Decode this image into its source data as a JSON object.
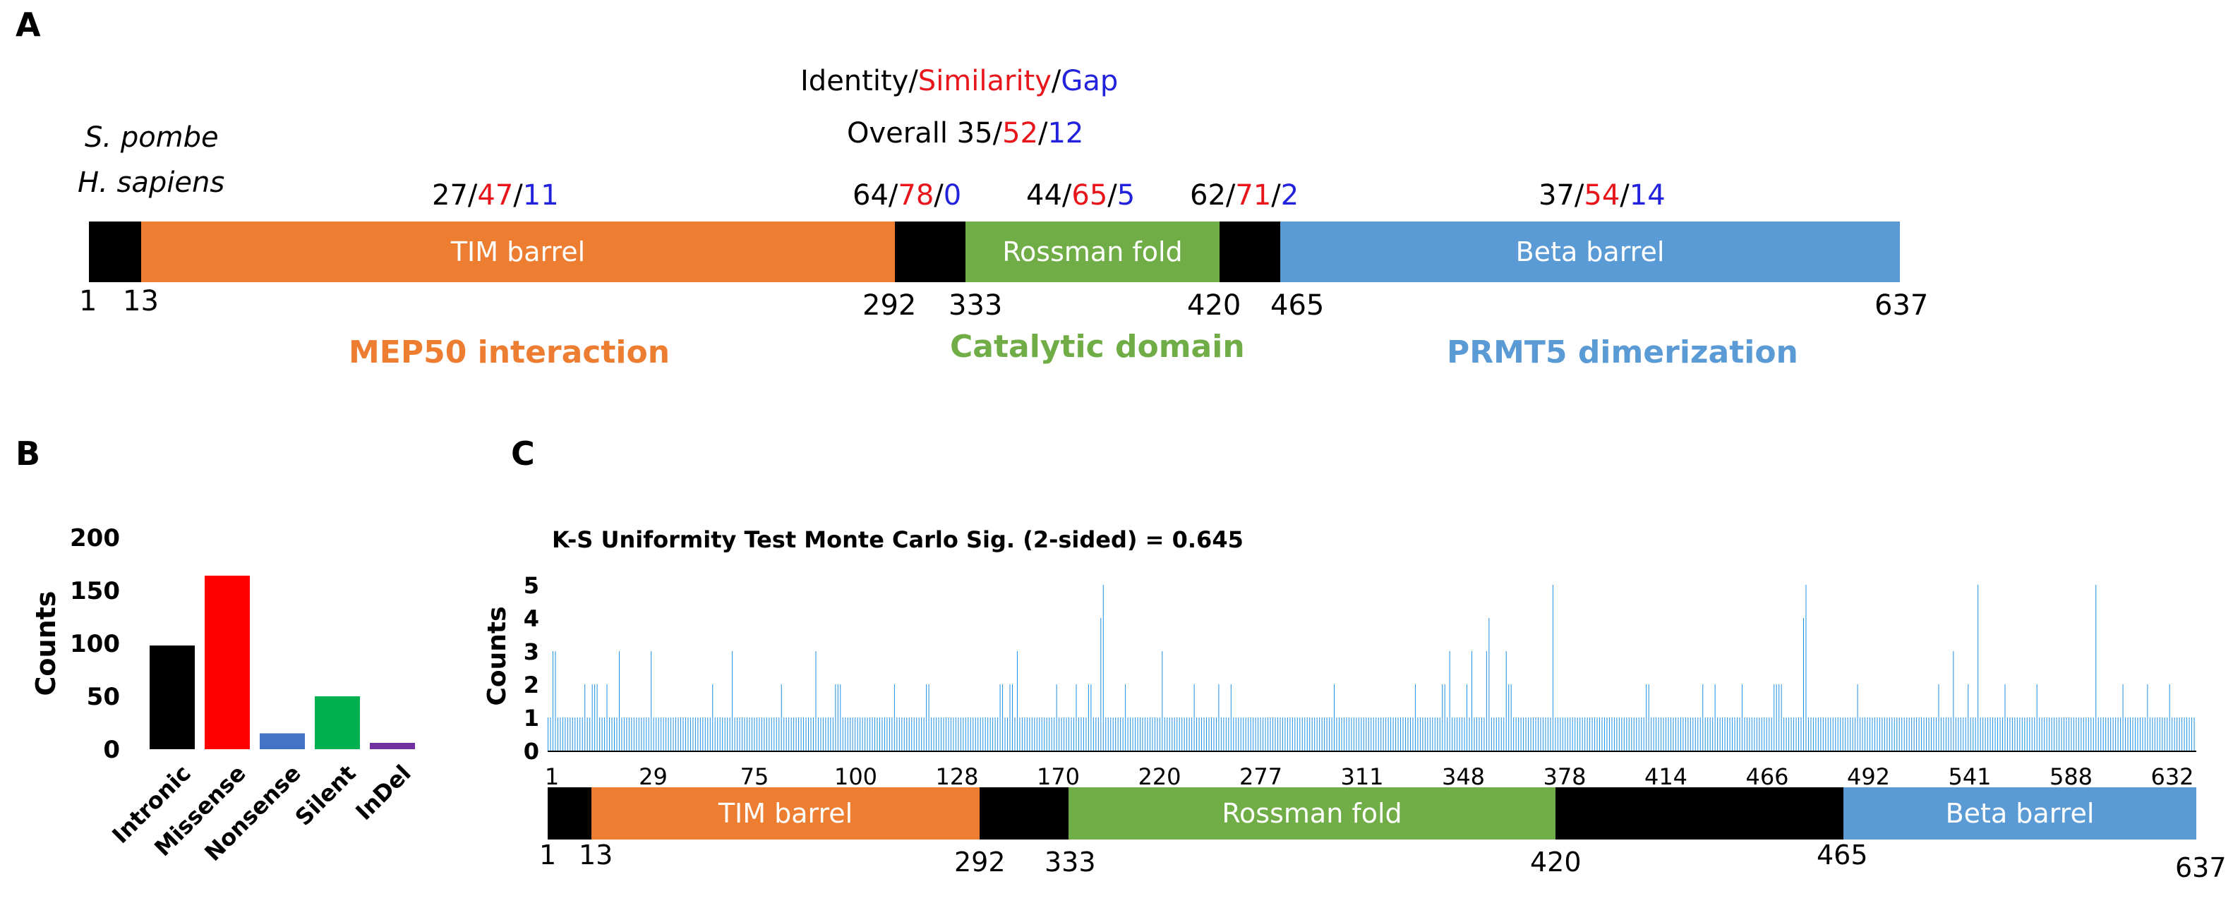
{
  "panels": {
    "a": "A",
    "b": "B",
    "c": "C"
  },
  "panel_a": {
    "species": [
      "S. pombe",
      "H. sapiens"
    ],
    "legend": {
      "identity": "Identity",
      "similarity": "Similarity",
      "gap": "Gap"
    },
    "overall": {
      "label": "Overall",
      "identity": "35",
      "similarity": "52",
      "gap": "12"
    },
    "stats": [
      {
        "identity": "27",
        "similarity": "47",
        "gap": "11"
      },
      {
        "identity": "64",
        "similarity": "78",
        "gap": "0"
      },
      {
        "identity": "44",
        "similarity": "65",
        "gap": "5"
      },
      {
        "identity": "62",
        "similarity": "71",
        "gap": "2"
      },
      {
        "identity": "37",
        "similarity": "54",
        "gap": "14"
      }
    ],
    "domains": [
      {
        "label": "",
        "start": 1,
        "end": 13,
        "color": "#000000"
      },
      {
        "label": "TIM barrel",
        "start": 13,
        "end": 292,
        "color": "#ed7d31"
      },
      {
        "label": "",
        "start": 292,
        "end": 333,
        "color": "#000000"
      },
      {
        "label": "Rossman fold",
        "start": 333,
        "end": 420,
        "color": "#70ad47"
      },
      {
        "label": "",
        "start": 420,
        "end": 465,
        "color": "#000000"
      },
      {
        "label": "Beta barrel",
        "start": 465,
        "end": 637,
        "color": "#5b9bd5"
      }
    ],
    "positions": [
      "1",
      "13",
      "292",
      "333",
      "420",
      "465",
      "637"
    ],
    "regions": [
      {
        "label": "MEP50 interaction",
        "color": "#ed7d31"
      },
      {
        "label": "Catalytic domain",
        "color": "#70ad47"
      },
      {
        "label": "PRMT5 dimerization",
        "color": "#5b9bd5"
      }
    ]
  },
  "chart_data": [
    {
      "type": "bar",
      "title": "",
      "xlabel": "",
      "ylabel": "Counts",
      "categories": [
        "Intronic",
        "Missense",
        "Nonsense",
        "Silent",
        "InDel"
      ],
      "values": [
        98,
        164,
        15,
        50,
        6
      ],
      "colors": [
        "#000000",
        "#ff0000",
        "#4472c4",
        "#00b050",
        "#7030a0"
      ],
      "ylim": [
        0,
        200
      ],
      "yticks": [
        "0",
        "50",
        "100",
        "150",
        "200"
      ]
    },
    {
      "type": "bar",
      "title": "K-S Uniformity Test Monte Carlo Sig. (2-sided) = 0.645",
      "xlabel": "",
      "ylabel": "Counts",
      "ylim": [
        0,
        5
      ],
      "yticks": [
        "0",
        "1",
        "2",
        "3",
        "4",
        "5"
      ],
      "xticks": [
        "1",
        "29",
        "75",
        "100",
        "128",
        "170",
        "220",
        "277",
        "311",
        "348",
        "378",
        "414",
        "466",
        "492",
        "541",
        "588",
        "632"
      ],
      "color": "#1e90e6",
      "values": [
        1,
        1,
        3,
        3,
        1,
        1,
        1,
        1,
        1,
        1,
        1,
        1,
        1,
        1,
        1,
        2,
        1,
        1,
        2,
        2,
        2,
        1,
        1,
        1,
        2,
        1,
        1,
        1,
        1,
        3,
        1,
        1,
        1,
        1,
        1,
        1,
        1,
        1,
        1,
        1,
        1,
        1,
        3,
        1,
        1,
        1,
        1,
        1,
        1,
        1,
        1,
        1,
        1,
        1,
        1,
        1,
        1,
        1,
        1,
        1,
        1,
        1,
        1,
        1,
        1,
        1,
        1,
        2,
        1,
        1,
        1,
        1,
        1,
        1,
        1,
        3,
        1,
        1,
        1,
        1,
        1,
        1,
        1,
        1,
        1,
        1,
        1,
        1,
        1,
        1,
        1,
        1,
        1,
        1,
        1,
        2,
        1,
        1,
        1,
        1,
        1,
        1,
        1,
        1,
        1,
        1,
        1,
        1,
        1,
        3,
        1,
        1,
        1,
        1,
        1,
        1,
        1,
        2,
        2,
        2,
        1,
        1,
        1,
        1,
        1,
        1,
        1,
        1,
        1,
        1,
        1,
        1,
        1,
        1,
        1,
        1,
        1,
        1,
        1,
        1,
        1,
        2,
        1,
        1,
        1,
        1,
        1,
        1,
        1,
        1,
        1,
        1,
        1,
        1,
        2,
        2,
        1,
        1,
        1,
        1,
        1,
        1,
        1,
        1,
        1,
        1,
        1,
        1,
        1,
        1,
        1,
        1,
        1,
        1,
        1,
        1,
        1,
        1,
        1,
        1,
        1,
        1,
        1,
        1,
        2,
        2,
        1,
        1,
        2,
        2,
        1,
        3,
        1,
        1,
        1,
        1,
        1,
        1,
        1,
        1,
        1,
        1,
        1,
        1,
        1,
        1,
        1,
        2,
        1,
        1,
        1,
        1,
        1,
        1,
        1,
        2,
        1,
        1,
        1,
        1,
        2,
        2,
        1,
        1,
        1,
        4,
        5,
        1,
        1,
        1,
        1,
        1,
        1,
        1,
        1,
        2,
        1,
        1,
        1,
        1,
        1,
        1,
        1,
        1,
        1,
        1,
        1,
        1,
        1,
        1,
        3,
        1,
        1,
        1,
        1,
        1,
        1,
        1,
        1,
        1,
        1,
        1,
        1,
        2,
        1,
        1,
        1,
        1,
        1,
        1,
        1,
        1,
        1,
        2,
        1,
        1,
        1,
        1,
        2,
        1,
        1,
        1,
        1,
        1,
        1,
        1,
        1,
        1,
        1,
        1,
        1,
        1,
        1,
        1,
        1,
        1,
        1,
        1,
        1,
        1,
        1,
        1,
        1,
        1,
        1,
        1,
        1,
        1,
        1,
        1,
        1,
        1,
        1,
        1,
        1,
        1,
        1,
        1,
        1,
        1,
        2,
        1,
        1,
        1,
        1,
        1,
        1,
        1,
        1,
        1,
        1,
        1,
        1,
        1,
        1,
        1,
        1,
        1,
        1,
        1,
        1,
        1,
        1,
        1,
        1,
        1,
        1,
        1,
        1,
        1,
        1,
        1,
        1,
        2,
        1,
        1,
        1,
        1,
        1,
        1,
        1,
        1,
        1,
        1,
        2,
        2,
        1,
        3,
        1,
        1,
        1,
        1,
        1,
        1,
        2,
        1,
        3,
        1,
        1,
        1,
        1,
        1,
        3,
        4,
        1,
        1,
        1,
        1,
        1,
        1,
        3,
        2,
        2,
        1,
        1,
        1,
        1,
        1,
        1,
        1,
        1,
        1,
        1,
        1,
        1,
        1,
        1,
        1,
        1,
        5,
        1,
        1,
        1,
        1,
        1,
        1,
        1,
        1,
        1,
        1,
        1,
        1,
        1,
        1,
        1,
        1,
        1,
        1,
        1,
        1,
        1,
        1,
        1,
        1,
        1,
        1,
        1,
        1,
        1,
        1,
        1,
        1,
        1,
        1,
        1,
        1,
        1,
        2,
        2,
        1,
        1,
        1,
        1,
        1,
        1,
        1,
        1,
        1,
        1,
        1,
        1,
        1,
        1,
        1,
        1,
        1,
        1,
        1,
        1,
        1,
        2,
        1,
        1,
        1,
        1,
        2,
        1,
        1,
        1,
        1,
        1,
        1,
        1,
        1,
        1,
        1,
        2,
        1,
        1,
        1,
        1,
        1,
        1,
        1,
        1,
        1,
        1,
        1,
        1,
        2,
        2,
        2,
        2,
        1,
        1,
        1,
        1,
        1,
        1,
        1,
        1,
        4,
        5,
        1,
        1,
        1,
        1,
        1,
        1,
        1,
        1,
        1,
        1,
        1,
        1,
        1,
        1,
        1,
        1,
        1,
        1,
        1,
        1,
        2,
        1,
        1,
        1,
        1,
        1,
        1,
        1,
        1,
        1,
        1,
        1,
        1,
        1,
        1,
        1,
        1,
        1,
        1,
        1,
        1,
        1,
        1,
        1,
        1,
        1,
        1,
        1,
        1,
        1,
        1,
        1,
        1,
        2,
        1,
        1,
        1,
        1,
        1,
        3,
        1,
        1,
        1,
        1,
        1,
        2,
        1,
        1,
        1,
        5,
        1,
        1,
        1,
        1,
        1,
        1,
        1,
        1,
        1,
        1,
        2,
        1,
        1,
        1,
        1,
        1,
        1,
        1,
        1,
        1,
        1,
        1,
        1,
        2,
        1,
        1,
        1,
        1,
        1,
        1,
        1,
        1,
        1,
        1,
        1,
        1,
        1,
        1,
        1,
        1,
        1,
        1,
        1,
        1,
        1,
        1,
        1,
        5,
        1,
        1,
        1,
        1,
        1,
        1,
        1,
        1,
        1,
        1,
        2,
        1,
        1,
        1,
        1,
        1,
        1,
        1,
        1,
        1,
        2,
        1,
        1,
        1,
        1,
        1,
        1,
        1,
        1,
        2,
        1,
        1,
        1,
        1,
        1,
        1,
        1,
        1,
        1,
        1
      ]
    }
  ],
  "panel_c_domains": [
    {
      "label": "",
      "color": "#000000"
    },
    {
      "label": "TIM barrel",
      "color": "#ed7d31"
    },
    {
      "label": "",
      "color": "#000000"
    },
    {
      "label": "Rossman fold",
      "color": "#70ad47"
    },
    {
      "label": "",
      "color": "#000000"
    },
    {
      "label": "Beta barrel",
      "color": "#5b9bd5"
    }
  ],
  "panel_c_positions": [
    "1",
    "13",
    "292",
    "333",
    "420",
    "465",
    "637"
  ]
}
